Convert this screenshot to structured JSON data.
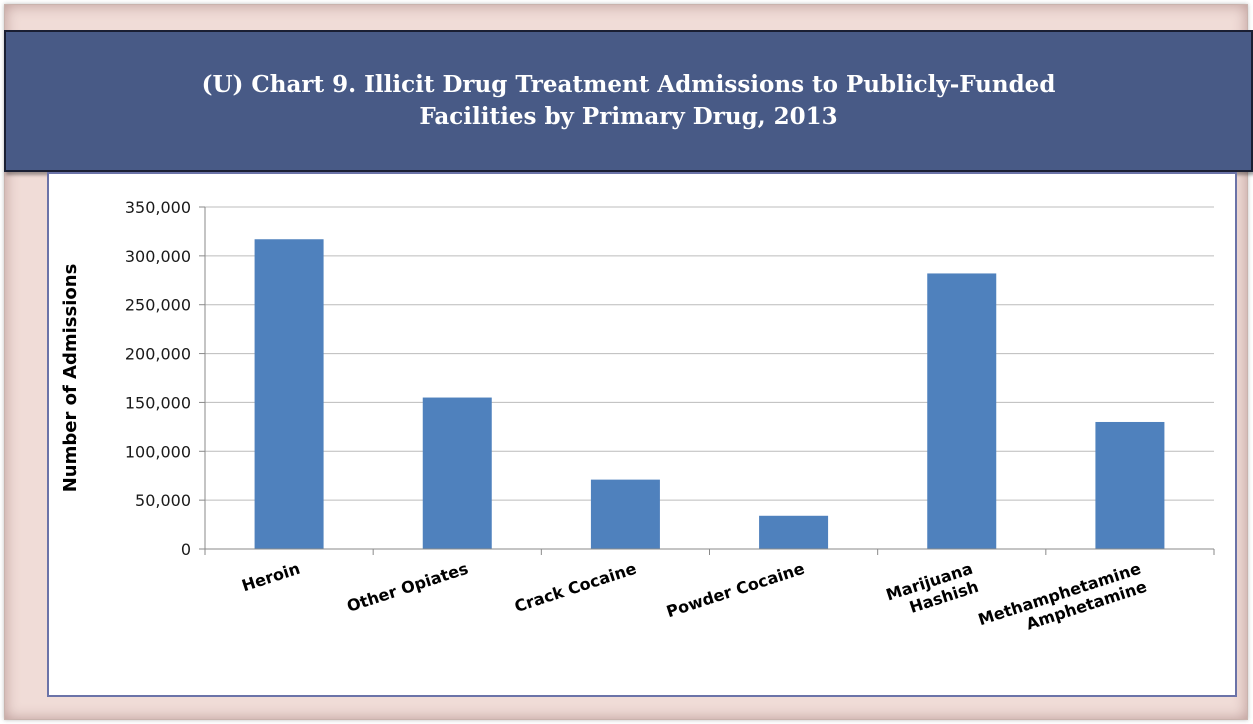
{
  "title": {
    "line1": "(U)  Chart 9.  Illicit Drug Treatment Admissions to Publicly-Funded",
    "line2": "Facilities by Primary Drug, 2013"
  },
  "chart_data": {
    "type": "bar",
    "categories": [
      [
        "Heroin"
      ],
      [
        "Other Opiates"
      ],
      [
        "Crack Cocaine"
      ],
      [
        "Powder Cocaine"
      ],
      [
        "Marijuana",
        "Hashish"
      ],
      [
        "Methamphetamine",
        "Amphetamine"
      ]
    ],
    "values": [
      317000,
      155000,
      71000,
      34000,
      282000,
      130000
    ],
    "ylabel": "Number of Admissions",
    "ylim": [
      0,
      350000
    ],
    "yticks": [
      0,
      50000,
      100000,
      150000,
      200000,
      250000,
      300000,
      350000
    ],
    "ytick_labels": [
      "0",
      "50,000",
      "100,000",
      "150,000",
      "200,000",
      "250,000",
      "300,000",
      "350,000"
    ],
    "grid": true,
    "bar_color": "#4f81bd",
    "grid_color": "#bcbcbc"
  }
}
